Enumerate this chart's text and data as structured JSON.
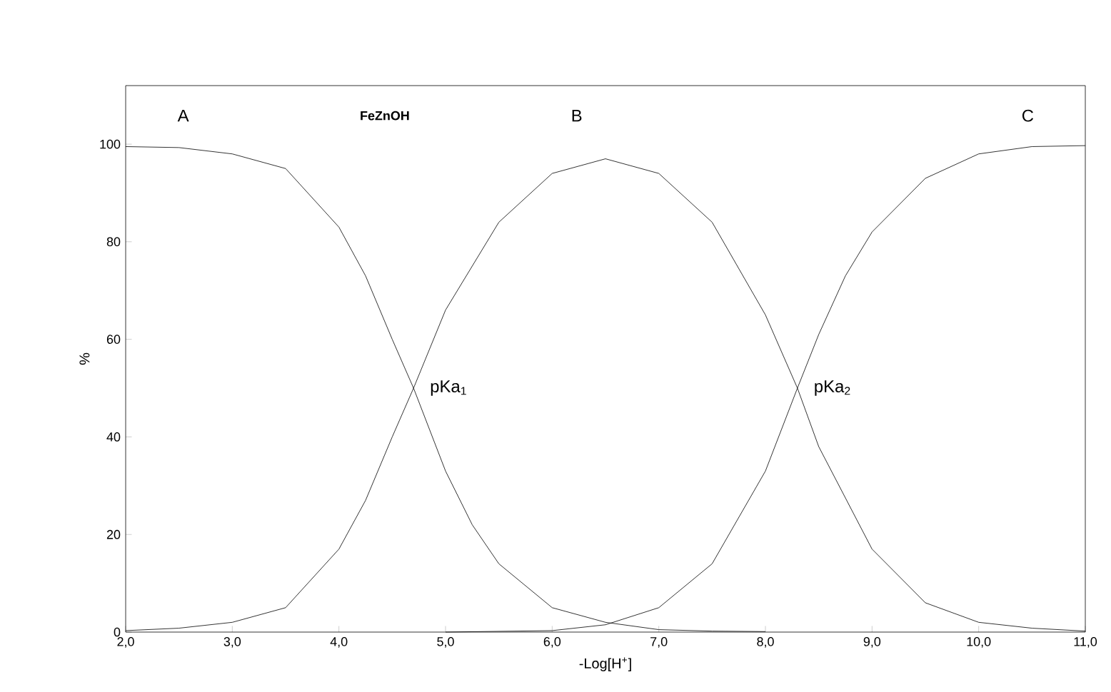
{
  "chart_data": {
    "type": "line",
    "title": "FeZnOH",
    "xlabel": "-Log[H$^{+}$]",
    "ylabel": "%",
    "xlim": [
      2,
      11
    ],
    "ylim": [
      0,
      112
    ],
    "xticks": [
      {
        "value": 2,
        "label": "2,0"
      },
      {
        "value": 3,
        "label": "3,0"
      },
      {
        "value": 4,
        "label": "4,0"
      },
      {
        "value": 5,
        "label": "5,0"
      },
      {
        "value": 6,
        "label": "6,0"
      },
      {
        "value": 7,
        "label": "7,0"
      },
      {
        "value": 8,
        "label": "8,0"
      },
      {
        "value": 9,
        "label": "9,0"
      },
      {
        "value": 10,
        "label": "10,0"
      },
      {
        "value": 11,
        "label": "11,0"
      }
    ],
    "yticks": [
      0,
      20,
      40,
      60,
      80,
      100
    ],
    "marker": "none",
    "line_style": "solid",
    "series": [
      {
        "color": "#000000",
        "x": [
          2,
          2.5,
          3,
          3.5,
          4,
          4.25,
          4.5,
          4.7,
          5,
          5.25,
          5.5,
          6,
          6.5,
          7,
          7.5,
          8
        ],
        "values": [
          99.5,
          99.3,
          98,
          95,
          83,
          73,
          60,
          50,
          33,
          22,
          14,
          5,
          2,
          0.5,
          0.2,
          0.1
        ]
      },
      {
        "color": "#000000",
        "x": [
          2,
          2.5,
          3,
          3.5,
          4,
          4.25,
          4.5,
          4.7,
          5,
          5.5,
          6,
          6.5,
          7,
          7.5,
          8,
          8.3,
          8.5,
          9,
          9.5,
          10,
          10.5,
          11
        ],
        "values": [
          0.3,
          0.8,
          2,
          5,
          17,
          27,
          40,
          50,
          66,
          84,
          94,
          97,
          94,
          84,
          65,
          50,
          38,
          17,
          6,
          2,
          0.8,
          0.2
        ]
      },
      {
        "color": "#000000",
        "x": [
          5,
          6,
          6.5,
          7,
          7.5,
          8,
          8.3,
          8.5,
          8.75,
          9,
          9.5,
          10,
          10.5,
          11
        ],
        "values": [
          0,
          0.3,
          1.5,
          5,
          14,
          33,
          50,
          61,
          73,
          82,
          93,
          98,
          99.5,
          99.7
        ]
      }
    ],
    "annotations": [
      "A",
      "B",
      "C",
      {
        "text": "pKa$_{1}$",
        "x": 4.7,
        "y": 50
      },
      {
        "text": "pKa$_{2}$",
        "x": 8.3,
        "y": 50
      }
    ]
  }
}
